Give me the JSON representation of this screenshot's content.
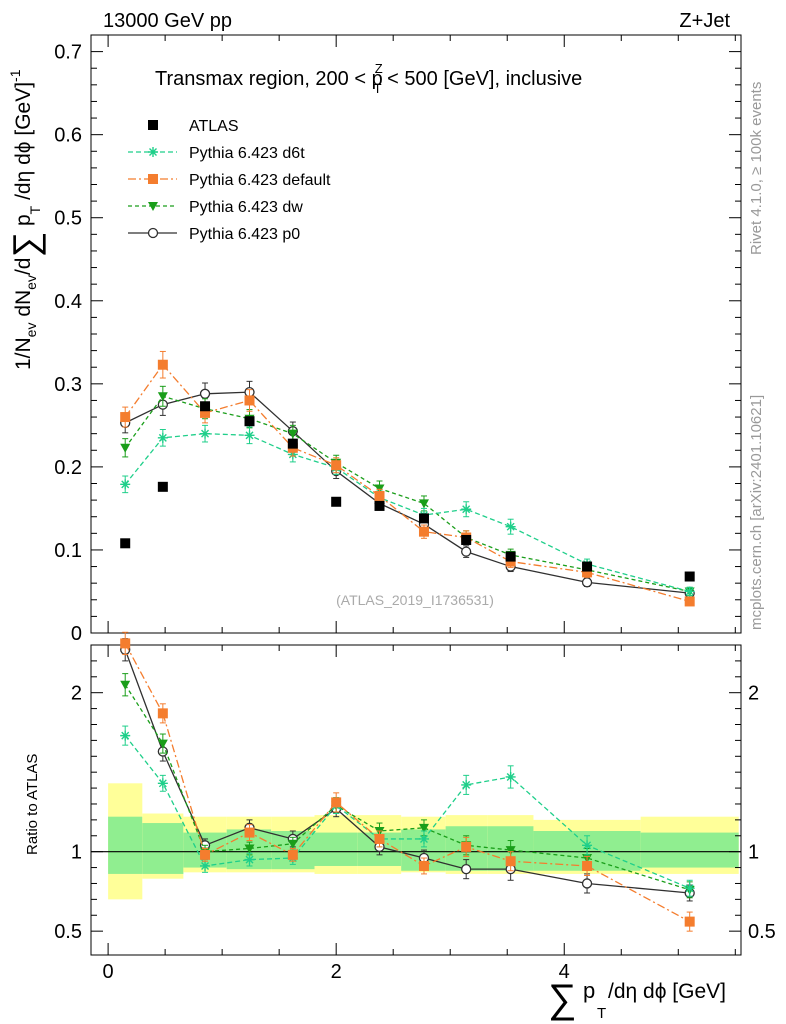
{
  "header": {
    "left": "13000 GeV pp",
    "right": "Z+Jet"
  },
  "side_labels": {
    "rivet": "Rivet 4.1.0, ≥ 100k events",
    "mcplots": "mcplots.cern.ch [arXiv:2401.10621]"
  },
  "plot_title": {
    "pre": "Transmax region, 200 < p",
    "sup": "Z",
    "sub": "T",
    "post": " < 500 [GeV], inclusive"
  },
  "y_axis_label": {
    "part1": "1/N",
    "sub1": "ev",
    "part2": " dN",
    "sub2": "ev",
    "part3": "/d",
    "sum": "∑",
    "part4": " p",
    "sub4": "T",
    "part5": " /dη dϕ  [GeV]",
    "sup5": "-1"
  },
  "ratio_y_label": "Ratio to ATLAS",
  "x_axis_label": {
    "sum": "∑",
    "p": "p",
    "sub": "T",
    "rest": " /dη dϕ [GeV]"
  },
  "watermark": "(ATLAS_2019_I1736531)",
  "colors": {
    "atlas": "#000000",
    "d6t": "#1fcf8a",
    "default": "#f47d2e",
    "dw": "#1a9e1a",
    "p0": "#303030",
    "band_inner": "#90ee90",
    "band_outer": "#ffff99"
  },
  "chart_data": [
    {
      "type": "scatter",
      "title": "Transmax region, 200 < pT(Z) < 500 [GeV], inclusive",
      "xlabel": "∑ pT /dη dϕ [GeV]",
      "ylabel": "1/Nev dNev/d∑ pT /dη dϕ [GeV]^-1",
      "xlim": [
        -0.15,
        5.55
      ],
      "ylim": [
        0,
        0.72
      ],
      "x_ticks": [
        0,
        2,
        4
      ],
      "x_tick_labels": [
        "0",
        "2",
        "4"
      ],
      "y_ticks": [
        0,
        0.1,
        0.2,
        0.3,
        0.4,
        0.5,
        0.6,
        0.7
      ],
      "y_tick_labels": [
        "0",
        "0.1",
        "0.2",
        "0.3",
        "0.4",
        "0.5",
        "0.6",
        "0.7"
      ],
      "legend_position": "top-left",
      "x": [
        0.15,
        0.48,
        0.85,
        1.24,
        1.62,
        2.0,
        2.38,
        2.77,
        3.14,
        3.53,
        4.2,
        5.1
      ],
      "series": [
        {
          "name": "ATLAS",
          "key": "atlas",
          "marker": "square",
          "values": [
            0.108,
            0.176,
            0.273,
            0.255,
            0.228,
            0.158,
            0.153,
            0.138,
            0.112,
            0.092,
            0.08,
            0.068
          ],
          "errors": [
            0.003,
            0.003,
            0.003,
            0.003,
            0.003,
            0.003,
            0.003,
            0.003,
            0.003,
            0.003,
            0.003,
            0.003
          ]
        },
        {
          "name": "Pythia 6.423 d6t",
          "key": "d6t",
          "marker": "star",
          "dash": "5,3",
          "values": [
            0.179,
            0.235,
            0.24,
            0.238,
            0.215,
            0.199,
            0.163,
            0.142,
            0.149,
            0.128,
            0.083,
            0.05
          ],
          "errors": [
            0.01,
            0.01,
            0.01,
            0.01,
            0.009,
            0.008,
            0.008,
            0.008,
            0.009,
            0.009,
            0.006,
            0.005
          ]
        },
        {
          "name": "Pythia 6.423 default",
          "key": "default",
          "marker": "square",
          "dash": "8,3,2,3",
          "values": [
            0.26,
            0.323,
            0.265,
            0.28,
            0.223,
            0.202,
            0.165,
            0.122,
            0.115,
            0.086,
            0.073,
            0.038
          ],
          "errors": [
            0.012,
            0.016,
            0.012,
            0.013,
            0.01,
            0.009,
            0.008,
            0.008,
            0.008,
            0.007,
            0.006,
            0.004
          ]
        },
        {
          "name": "Pythia 6.423 dw",
          "key": "dw",
          "marker": "triangle-down",
          "dash": "4,3",
          "values": [
            0.223,
            0.285,
            0.27,
            0.258,
            0.24,
            0.205,
            0.174,
            0.156,
            0.115,
            0.094,
            0.076,
            0.05
          ],
          "errors": [
            0.011,
            0.012,
            0.012,
            0.011,
            0.01,
            0.009,
            0.009,
            0.009,
            0.008,
            0.007,
            0.006,
            0.005
          ]
        },
        {
          "name": "Pythia 6.423 p0",
          "key": "p0",
          "marker": "circle",
          "dash": "",
          "values": [
            0.253,
            0.275,
            0.288,
            0.29,
            0.243,
            0.195,
            0.156,
            0.131,
            0.098,
            0.08,
            0.061,
            0.048
          ],
          "errors": [
            0.012,
            0.013,
            0.013,
            0.013,
            0.011,
            0.009,
            0.008,
            0.008,
            0.007,
            0.006,
            0.005,
            0.004
          ]
        }
      ]
    },
    {
      "type": "line",
      "title": "Ratio to ATLAS",
      "ylabel": "Ratio to ATLAS",
      "xlim": [
        -0.15,
        5.55
      ],
      "ylim": [
        0.35,
        2.3
      ],
      "y_ticks": [
        0.5,
        1,
        2
      ],
      "y_tick_labels": [
        "0.5",
        "1",
        "2"
      ],
      "x": [
        0.15,
        0.48,
        0.85,
        1.24,
        1.62,
        2.0,
        2.38,
        2.77,
        3.14,
        3.53,
        4.2,
        5.1
      ],
      "bin_edges": [
        0,
        0.3,
        0.66,
        1.04,
        1.43,
        1.81,
        2.19,
        2.57,
        2.96,
        3.33,
        3.73,
        4.67,
        5.53
      ],
      "band_inner": [
        [
          0.86,
          1.22
        ],
        [
          0.86,
          1.18
        ],
        [
          0.9,
          1.12
        ],
        [
          0.89,
          1.14
        ],
        [
          0.89,
          1.13
        ],
        [
          0.91,
          1.12
        ],
        [
          0.91,
          1.12
        ],
        [
          0.88,
          1.14
        ],
        [
          0.88,
          1.16
        ],
        [
          0.88,
          1.16
        ],
        [
          0.88,
          1.13
        ],
        [
          0.9,
          1.12
        ]
      ],
      "band_outer": [
        [
          0.7,
          1.43
        ],
        [
          0.83,
          1.24
        ],
        [
          0.87,
          1.22
        ],
        [
          0.87,
          1.22
        ],
        [
          0.87,
          1.22
        ],
        [
          0.86,
          1.23
        ],
        [
          0.86,
          1.23
        ],
        [
          0.87,
          1.22
        ],
        [
          0.86,
          1.23
        ],
        [
          0.86,
          1.23
        ],
        [
          0.86,
          1.2
        ],
        [
          0.86,
          1.22
        ]
      ],
      "series": [
        {
          "name": "Pythia 6.423 d6t",
          "key": "d6t",
          "marker": "star",
          "dash": "5,3",
          "values": [
            1.73,
            1.43,
            0.91,
            0.95,
            0.96,
            1.29,
            1.08,
            1.08,
            1.42,
            1.47,
            1.04,
            0.77
          ],
          "errors": [
            0.06,
            0.05,
            0.04,
            0.04,
            0.04,
            0.05,
            0.05,
            0.05,
            0.06,
            0.07,
            0.06,
            0.05
          ]
        },
        {
          "name": "Pythia 6.423 default",
          "key": "default",
          "marker": "square",
          "dash": "8,3,2,3",
          "values": [
            2.31,
            1.87,
            0.98,
            1.12,
            0.98,
            1.31,
            1.08,
            0.91,
            1.03,
            0.94,
            0.91,
            0.56
          ],
          "errors": [
            0.07,
            0.06,
            0.04,
            0.05,
            0.04,
            0.06,
            0.05,
            0.05,
            0.06,
            0.06,
            0.06,
            0.06
          ]
        },
        {
          "name": "Pythia 6.423 dw",
          "key": "dw",
          "marker": "triangle-down",
          "dash": "4,3",
          "values": [
            2.05,
            1.68,
            1.0,
            1.02,
            1.05,
            1.29,
            1.13,
            1.15,
            1.04,
            1.01,
            0.96,
            0.76
          ],
          "errors": [
            0.07,
            0.06,
            0.04,
            0.04,
            0.04,
            0.05,
            0.05,
            0.05,
            0.06,
            0.06,
            0.06,
            0.05
          ]
        },
        {
          "name": "Pythia 6.423 p0",
          "key": "p0",
          "marker": "circle",
          "dash": "",
          "values": [
            2.27,
            1.63,
            1.04,
            1.15,
            1.08,
            1.27,
            1.03,
            0.96,
            0.89,
            0.89,
            0.8,
            0.74
          ],
          "errors": [
            0.07,
            0.06,
            0.04,
            0.05,
            0.05,
            0.05,
            0.05,
            0.05,
            0.06,
            0.07,
            0.06,
            0.05
          ]
        }
      ]
    }
  ]
}
